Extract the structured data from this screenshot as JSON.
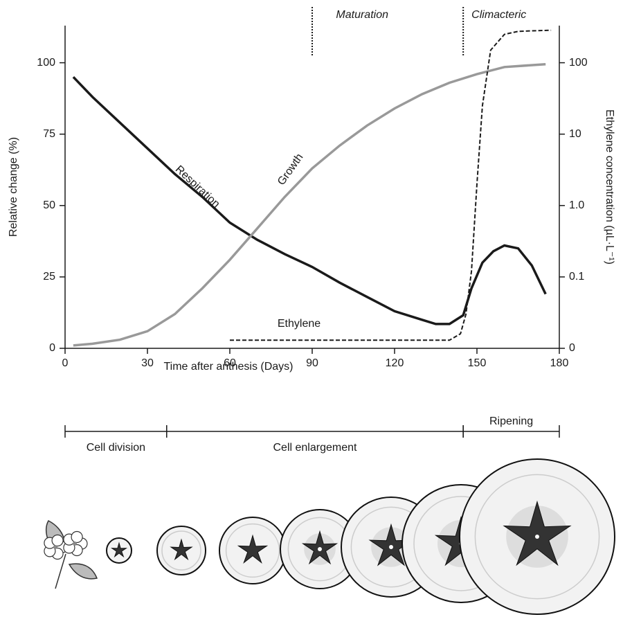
{
  "chart_data": {
    "type": "line",
    "xlabel": "Time after anthesis (Days)",
    "ylabel": "Relative change (%)",
    "y2label": "Ethylene concentration (µL·L⁻¹)",
    "xlim": [
      0,
      180
    ],
    "xticks": [
      0,
      30,
      60,
      90,
      120,
      150,
      180
    ],
    "ylim": [
      0,
      113
    ],
    "yticks": [
      0,
      25,
      50,
      75,
      100
    ],
    "y2scale": "log",
    "y2lim": [
      0.01,
      331
    ],
    "y2ticks": [
      {
        "value": 0.01,
        "label": "0"
      },
      0.1,
      {
        "value": 1,
        "label": "1.0"
      },
      10,
      100
    ],
    "series": [
      {
        "name": "Respiration",
        "color": "#1a1a1a",
        "dash": false,
        "x": [
          3,
          10,
          20,
          30,
          40,
          50,
          60,
          70,
          80,
          90,
          100,
          110,
          120,
          130,
          135,
          140,
          145,
          148,
          152,
          156,
          160,
          165,
          170,
          175
        ],
        "values": [
          95,
          88,
          79,
          70,
          61,
          53,
          44,
          38,
          33,
          28.5,
          23,
          18,
          13,
          10,
          8.5,
          8.5,
          11.6,
          21,
          30,
          34,
          36,
          35,
          29,
          19
        ]
      },
      {
        "name": "Growth",
        "color": "#999999",
        "dash": false,
        "x": [
          3,
          10,
          20,
          30,
          40,
          50,
          60,
          70,
          80,
          90,
          100,
          110,
          120,
          130,
          140,
          150,
          160,
          175
        ],
        "values": [
          1,
          1.6,
          3,
          6,
          12,
          21,
          31,
          42,
          53,
          63,
          71,
          78,
          84,
          89,
          93,
          96,
          98.5,
          99.5
        ]
      },
      {
        "name": "Ethylene",
        "color": "#1a1a1a",
        "dash": true,
        "axis": "y2",
        "x": [
          60,
          140,
          144,
          146,
          148,
          150,
          152,
          155,
          160,
          165,
          170,
          177
        ],
        "values": [
          0.013,
          0.013,
          0.016,
          0.03,
          0.12,
          2,
          25,
          150,
          250,
          275,
          280,
          285
        ]
      }
    ],
    "stages": [
      {
        "label": "Maturation",
        "x": 90
      },
      {
        "label": "Climacteric",
        "x": 145
      }
    ],
    "phases": [
      {
        "label": "Cell division",
        "start": 0,
        "end": 37
      },
      {
        "label": "Cell enlargement",
        "start": 37,
        "end": 145
      },
      {
        "label": "Ripening",
        "start": 145,
        "end": 180
      }
    ]
  }
}
